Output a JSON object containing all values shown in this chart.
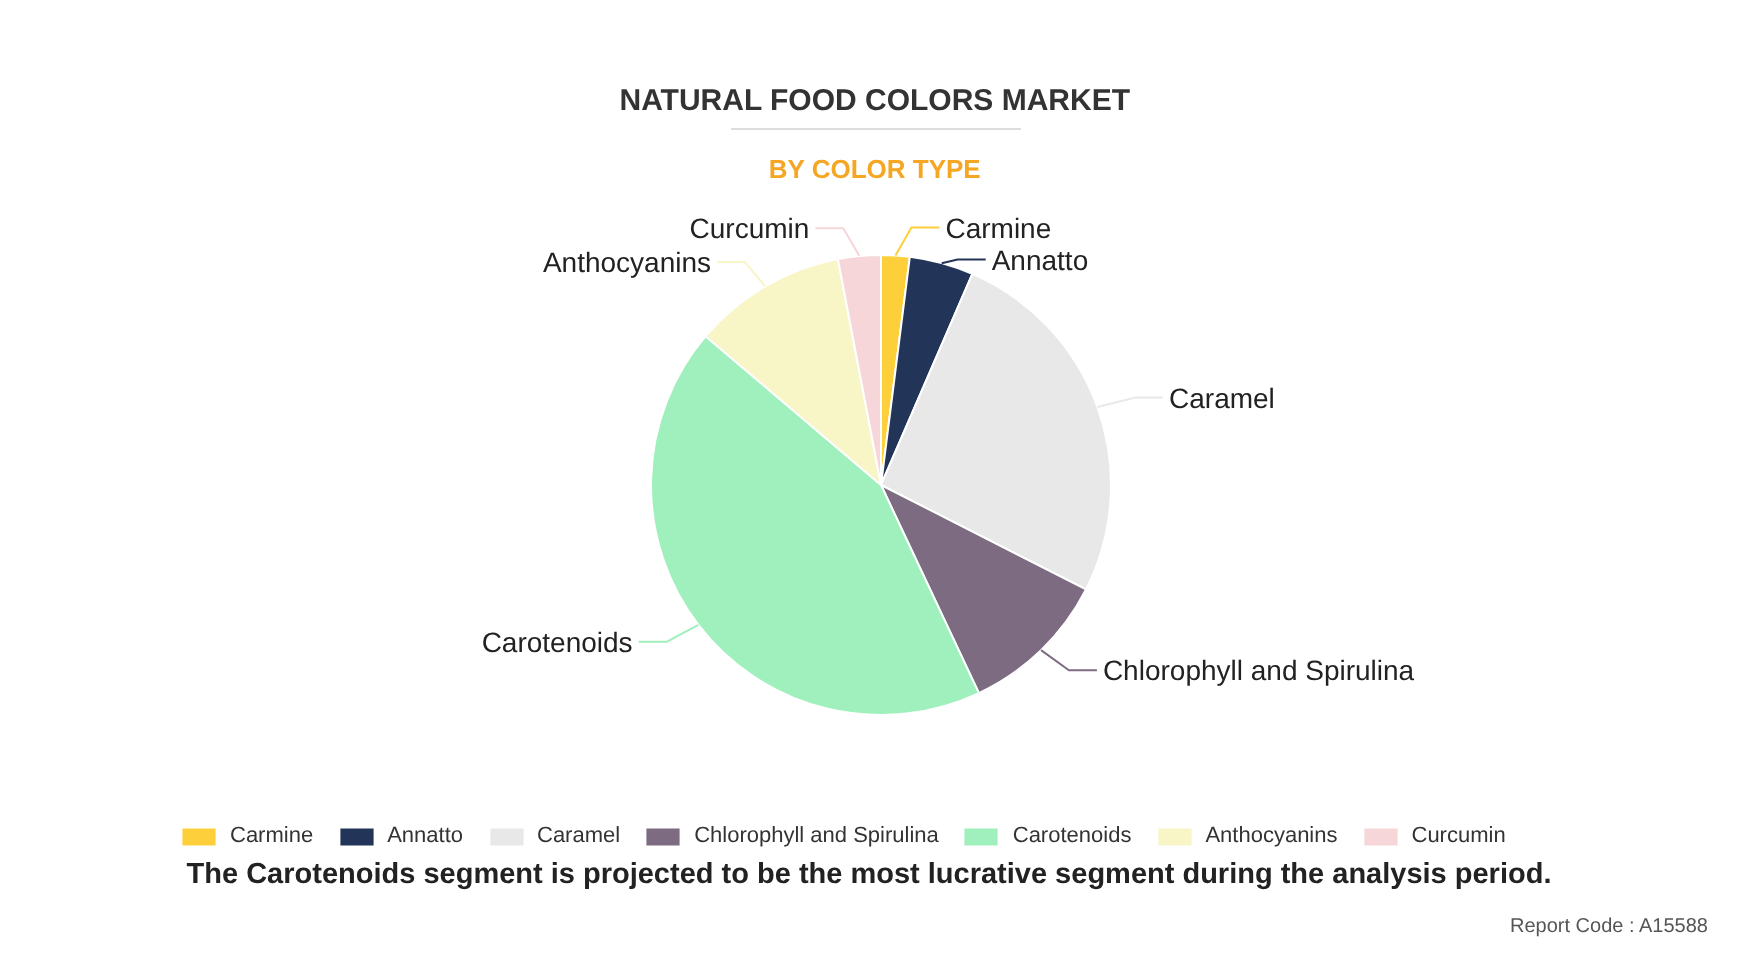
{
  "chart_data": {
    "type": "pie",
    "title": "NATURAL FOOD COLORS MARKET",
    "subtitle": "BY COLOR TYPE",
    "categories": [
      "Carmine",
      "Annatto",
      "Caramel",
      "Chlorophyll and Spirulina",
      "Carotenoids",
      "Anthocyanins",
      "Curcumin"
    ],
    "values": [
      2,
      4.5,
      26,
      10.5,
      43.2,
      10.8,
      3
    ],
    "colors": [
      "#fdd03b",
      "#233459",
      "#e8e8e8",
      "#7d6b82",
      "#9ff0bd",
      "#f8f5c6",
      "#f6d6d8"
    ],
    "legend": "bottom",
    "annotations": [
      "The Carotenoids segment is projected to be the most lucrative segment during the analysis period.",
      "Report Code : A15588"
    ]
  }
}
